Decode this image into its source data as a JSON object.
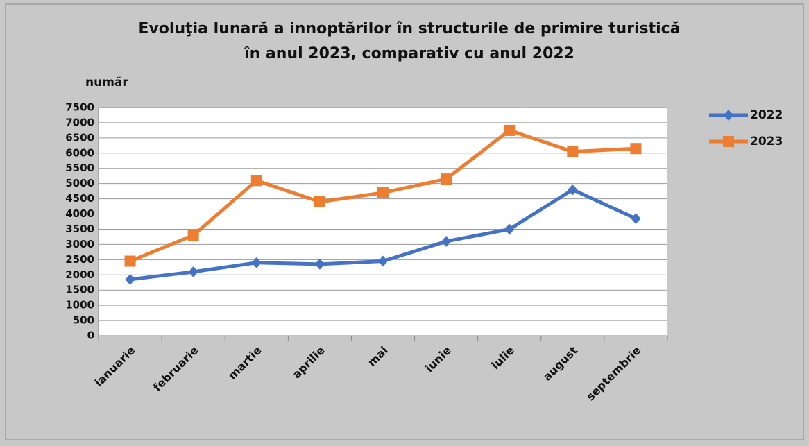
{
  "chart_data": {
    "type": "line",
    "title": [
      "Evoluţia lunară a innoptărilor în structurile de primire turistică",
      "în anul 2023, comparativ cu anul 2022"
    ],
    "y_label": "număr",
    "categories": [
      "ianuarie",
      "februarie",
      "martie",
      "aprilie",
      "mai",
      "iunie",
      "iulie",
      "august",
      "septembrie"
    ],
    "series": [
      {
        "name": "2022",
        "color": "#4472c4",
        "marker": "diamond",
        "values": [
          1850,
          2100,
          2400,
          2350,
          2450,
          3100,
          3500,
          4800,
          3850
        ]
      },
      {
        "name": "2023",
        "color": "#ed7d31",
        "marker": "square",
        "values": [
          2450,
          3300,
          5100,
          4400,
          4700,
          5150,
          6750,
          6050,
          6150
        ]
      }
    ],
    "ylim": [
      0,
      7500
    ],
    "yticks": [
      0,
      500,
      1000,
      1500,
      2000,
      2500,
      3000,
      3500,
      4000,
      4500,
      5000,
      5500,
      6000,
      6500,
      7000,
      7500
    ],
    "grid": true,
    "legend": "right"
  }
}
